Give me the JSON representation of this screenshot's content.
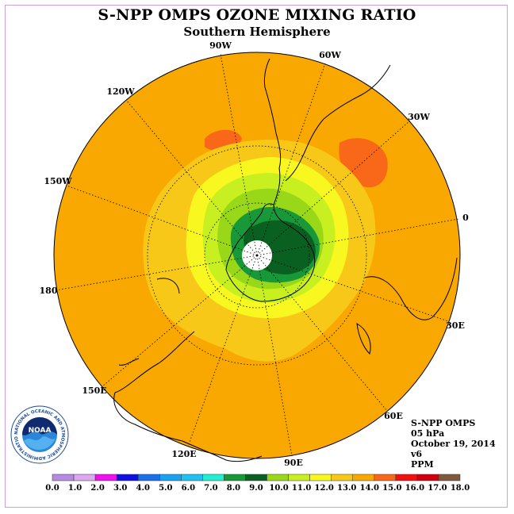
{
  "title": "S-NPP OMPS OZONE MIXING RATIO",
  "subtitle": "Southern Hemisphere",
  "lon_labels": [
    "90W",
    "60W",
    "30W",
    "0",
    "30E",
    "60E",
    "90E",
    "120E",
    "150E",
    "180",
    "150W",
    "120W"
  ],
  "info": {
    "instrument": "S-NPP OMPS",
    "level": "05 hPa",
    "date": "October 19, 2014",
    "version": "v6",
    "units": "PPM"
  },
  "logo_text": "NOAA",
  "logo_ring_text": "NATIONAL OCEANIC AND ATMOSPHERIC ADMINISTRATION U.S. DEPARTMENT OF COMMERCE",
  "colorbar": {
    "ticks": [
      "0.0",
      "1.0",
      "2.0",
      "3.0",
      "4.0",
      "5.0",
      "6.0",
      "7.0",
      "8.0",
      "9.0",
      "10.0",
      "11.0",
      "12.0",
      "13.0",
      "14.0",
      "15.0",
      "16.0",
      "17.0",
      "18.0"
    ],
    "colors": [
      "#b58ae0",
      "#dca8f0",
      "#ee10ee",
      "#1010e0",
      "#1a70e8",
      "#1aa0f0",
      "#20c0f0",
      "#20f0d0",
      "#189838",
      "#0a6020",
      "#98d818",
      "#c8f020",
      "#f8f820",
      "#f8c818",
      "#f8a800",
      "#f86818",
      "#f01010",
      "#d00010",
      "#80583a"
    ]
  }
}
